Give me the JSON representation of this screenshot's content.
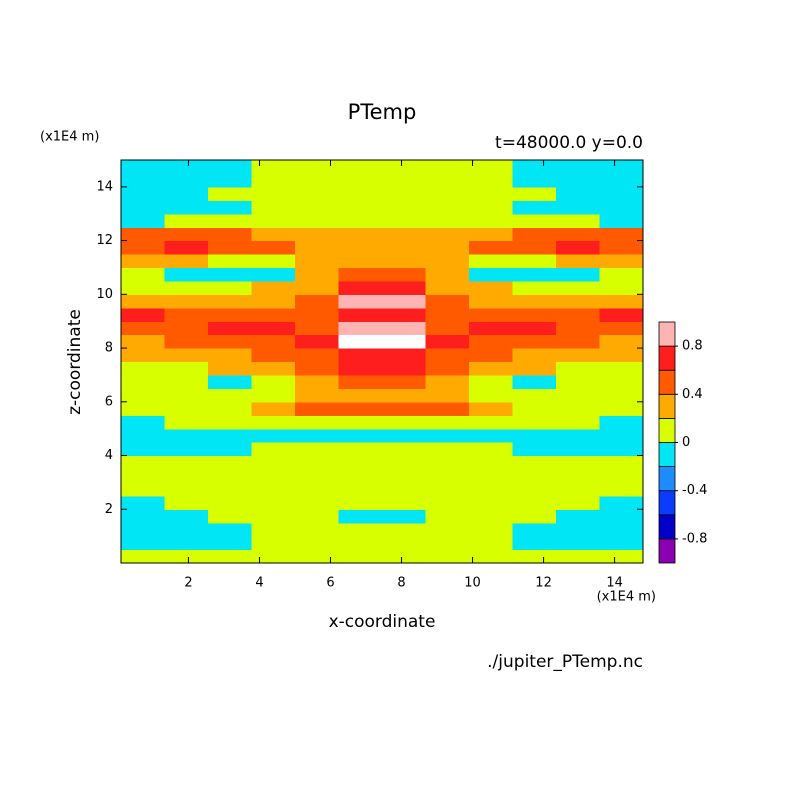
{
  "chart_data": {
    "type": "contour",
    "title": "PTemp",
    "subtitle": "t=48000.0 y=0.0",
    "x_label": "x-coordinate",
    "y_label": "z-coordinate",
    "x_unit": "(x1E4 m)",
    "y_unit": "(x1E4 m)",
    "source": "./jupiter_PTemp.nc",
    "xlim": [
      0.1,
      14.8
    ],
    "ylim": [
      0,
      15
    ],
    "xticks": [
      2,
      4,
      6,
      8,
      10,
      12,
      14
    ],
    "yticks": [
      2,
      4,
      6,
      8,
      10,
      12,
      14
    ],
    "x": [
      0.71,
      1.94,
      3.16,
      4.39,
      5.61,
      6.84,
      8.06,
      9.29,
      10.51,
      11.74,
      12.96,
      14.19
    ],
    "y": [
      0.25,
      0.75,
      1.25,
      1.75,
      2.25,
      2.75,
      3.25,
      3.75,
      4.25,
      4.75,
      5.25,
      5.75,
      6.25,
      6.75,
      7.25,
      7.75,
      8.25,
      8.75,
      9.25,
      9.75,
      10.25,
      10.75,
      11.25,
      11.75,
      12.25,
      12.75,
      13.25,
      13.75,
      14.25,
      14.75
    ],
    "z": [
      [
        0.1,
        0.1,
        0.1,
        0.1,
        0.1,
        0.1,
        0.1,
        0.1,
        0.1,
        0.1,
        0.1,
        0.1
      ],
      [
        -0.1,
        -0.1,
        -0.1,
        0.1,
        0.1,
        0.1,
        0.1,
        0.1,
        0.1,
        -0.1,
        -0.1,
        -0.1
      ],
      [
        -0.1,
        -0.1,
        -0.1,
        0.1,
        0.1,
        0.1,
        0.1,
        0.1,
        0.1,
        -0.1,
        -0.1,
        -0.1
      ],
      [
        -0.1,
        -0.1,
        0.1,
        0.1,
        0.1,
        -0.1,
        -0.1,
        0.1,
        0.1,
        0.1,
        -0.1,
        -0.1
      ],
      [
        -0.1,
        0.1,
        0.1,
        0.1,
        0.1,
        0.1,
        0.1,
        0.1,
        0.1,
        0.1,
        0.1,
        -0.1
      ],
      [
        0.1,
        0.1,
        0.1,
        0.1,
        0.1,
        0.1,
        0.1,
        0.1,
        0.1,
        0.1,
        0.1,
        0.1
      ],
      [
        0.1,
        0.1,
        0.1,
        0.1,
        0.1,
        0.1,
        0.1,
        0.1,
        0.1,
        0.1,
        0.1,
        0.1
      ],
      [
        0.1,
        0.1,
        0.1,
        0.1,
        0.1,
        0.1,
        0.1,
        0.1,
        0.1,
        0.1,
        0.1,
        0.1
      ],
      [
        -0.1,
        -0.1,
        -0.1,
        0.1,
        0.1,
        0.1,
        0.1,
        0.1,
        0.1,
        -0.1,
        -0.1,
        -0.1
      ],
      [
        -0.1,
        -0.1,
        -0.1,
        -0.1,
        -0.1,
        -0.1,
        -0.1,
        -0.1,
        -0.1,
        -0.1,
        -0.1,
        -0.1
      ],
      [
        -0.1,
        0.1,
        0.1,
        0.1,
        0.1,
        0.1,
        0.1,
        0.1,
        0.1,
        0.1,
        0.1,
        -0.1
      ],
      [
        0.1,
        0.1,
        0.1,
        0.3,
        0.5,
        0.5,
        0.5,
        0.5,
        0.3,
        0.1,
        0.1,
        0.1
      ],
      [
        0.1,
        0.1,
        0.1,
        0.1,
        0.3,
        0.3,
        0.3,
        0.3,
        0.1,
        0.1,
        0.1,
        0.1
      ],
      [
        0.1,
        0.1,
        -0.1,
        0.1,
        0.3,
        0.5,
        0.5,
        0.3,
        0.1,
        -0.1,
        0.1,
        0.1
      ],
      [
        0.1,
        0.1,
        0.3,
        0.3,
        0.5,
        0.7,
        0.7,
        0.5,
        0.3,
        0.3,
        0.1,
        0.1
      ],
      [
        0.3,
        0.3,
        0.3,
        0.5,
        0.5,
        0.7,
        0.7,
        0.5,
        0.5,
        0.3,
        0.3,
        0.3
      ],
      [
        0.3,
        0.5,
        0.5,
        0.5,
        0.7,
        1.1,
        1.1,
        0.7,
        0.5,
        0.5,
        0.5,
        0.3
      ],
      [
        0.5,
        0.5,
        0.7,
        0.7,
        0.5,
        0.9,
        0.9,
        0.5,
        0.7,
        0.7,
        0.5,
        0.5
      ],
      [
        0.7,
        0.5,
        0.5,
        0.5,
        0.5,
        0.7,
        0.7,
        0.5,
        0.5,
        0.5,
        0.5,
        0.7
      ],
      [
        0.3,
        0.3,
        0.3,
        0.3,
        0.5,
        0.9,
        0.9,
        0.5,
        0.3,
        0.3,
        0.3,
        0.3
      ],
      [
        0.1,
        0.1,
        0.1,
        0.3,
        0.3,
        0.7,
        0.7,
        0.3,
        0.3,
        0.1,
        0.1,
        0.1
      ],
      [
        0.1,
        -0.1,
        -0.1,
        -0.1,
        0.3,
        0.5,
        0.5,
        0.3,
        -0.1,
        -0.1,
        -0.1,
        0.1
      ],
      [
        0.3,
        0.3,
        0.1,
        0.1,
        0.3,
        0.3,
        0.3,
        0.3,
        0.1,
        0.1,
        0.3,
        0.3
      ],
      [
        0.5,
        0.7,
        0.5,
        0.5,
        0.3,
        0.3,
        0.3,
        0.3,
        0.5,
        0.5,
        0.7,
        0.5
      ],
      [
        0.5,
        0.5,
        0.5,
        0.3,
        0.3,
        0.3,
        0.3,
        0.3,
        0.3,
        0.5,
        0.5,
        0.5
      ],
      [
        -0.1,
        0.1,
        0.1,
        0.1,
        0.1,
        0.1,
        0.1,
        0.1,
        0.1,
        0.1,
        0.1,
        -0.1
      ],
      [
        -0.1,
        -0.1,
        -0.1,
        0.1,
        0.1,
        0.1,
        0.1,
        0.1,
        0.1,
        -0.1,
        -0.1,
        -0.1
      ],
      [
        -0.1,
        -0.1,
        0.1,
        0.1,
        0.1,
        0.1,
        0.1,
        0.1,
        0.1,
        0.1,
        -0.1,
        -0.1
      ],
      [
        -0.1,
        -0.1,
        -0.1,
        0.1,
        0.1,
        0.1,
        0.1,
        0.1,
        0.1,
        -0.1,
        -0.1,
        -0.1
      ],
      [
        -0.1,
        -0.1,
        -0.1,
        0.1,
        0.1,
        0.1,
        0.1,
        0.1,
        0.1,
        -0.1,
        -0.1,
        -0.1
      ]
    ],
    "levels": [
      -1,
      -0.8,
      -0.6,
      -0.4,
      -0.2,
      0,
      0.2,
      0.4,
      0.6,
      0.8,
      1
    ],
    "colors": [
      "#8c00b4",
      "#0000c8",
      "#0a3cff",
      "#1e8cff",
      "#00e6f5",
      "#d7ff00",
      "#ffaa00",
      "#ff5a00",
      "#ff1e1e",
      "#ffb4b4"
    ],
    "above_color": "#ffffff",
    "colorbar_ticks": [
      -0.8,
      -0.4,
      0,
      0.4,
      0.8
    ]
  }
}
